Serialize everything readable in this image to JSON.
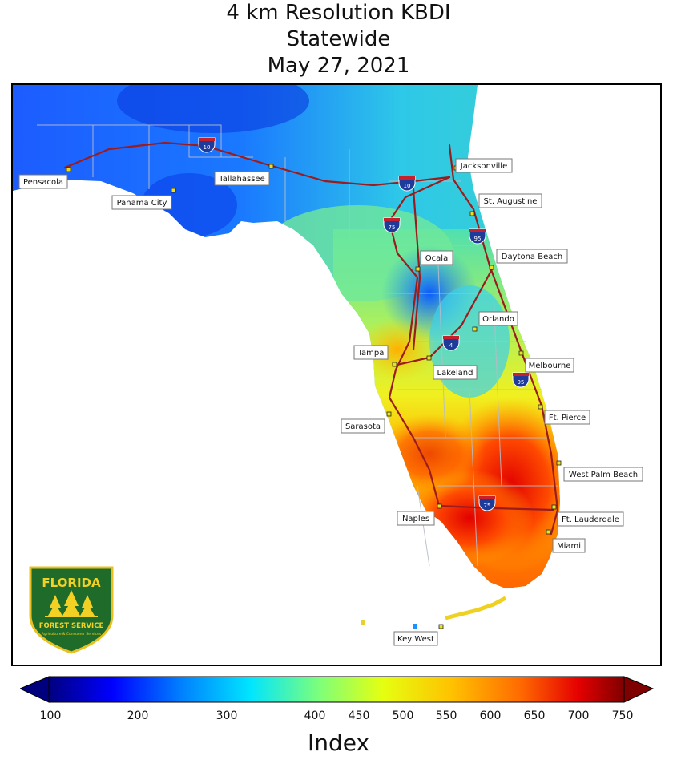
{
  "title": {
    "line1": "4 km Resolution KBDI",
    "line2": "Statewide",
    "line3": "May 27, 2021"
  },
  "colorbar": {
    "title": "Index",
    "ticks": [
      "100",
      "200",
      "300",
      "400",
      "450",
      "500",
      "550",
      "600",
      "650",
      "700",
      "750"
    ],
    "colors": [
      "#00007f",
      "#0000ff",
      "#0080ff",
      "#00e5ff",
      "#7dff7a",
      "#e5ff10",
      "#ffc200",
      "#ff6a00",
      "#e50000",
      "#7f0000"
    ]
  },
  "cities": [
    {
      "name": "Pensacola"
    },
    {
      "name": "Panama City"
    },
    {
      "name": "Tallahassee"
    },
    {
      "name": "Jacksonville"
    },
    {
      "name": "St. Augustine"
    },
    {
      "name": "Ocala"
    },
    {
      "name": "Daytona Beach"
    },
    {
      "name": "Orlando"
    },
    {
      "name": "Tampa"
    },
    {
      "name": "Lakeland"
    },
    {
      "name": "Melbourne"
    },
    {
      "name": "Sarasota"
    },
    {
      "name": "Ft. Pierce"
    },
    {
      "name": "West Palm Beach"
    },
    {
      "name": "Naples"
    },
    {
      "name": "Ft. Lauderdale"
    },
    {
      "name": "Miami"
    },
    {
      "name": "Key West"
    }
  ],
  "highways": [
    {
      "name": "10"
    },
    {
      "name": "10"
    },
    {
      "name": "75"
    },
    {
      "name": "95"
    },
    {
      "name": "4"
    },
    {
      "name": "95"
    },
    {
      "name": "75"
    }
  ],
  "logo": {
    "top_text": "FLORIDA",
    "bottom_text": "FOREST SERVICE",
    "sub_text": "Agriculture & Consumer Services"
  }
}
